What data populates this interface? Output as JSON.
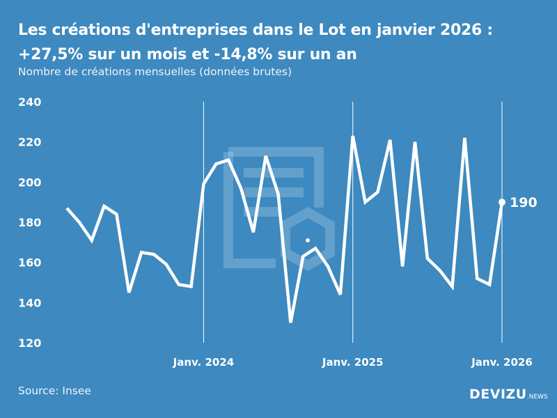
{
  "title_line1": "Les créations d'entreprises dans le Lot en janvier 2026 :",
  "title_line2": "+27,5% sur un mois et -14,8% sur un an",
  "subtitle": "Nombre de créations mensuelles (données brutes)",
  "source": "Source: Insee",
  "logo": {
    "main": "DEVIZU",
    "suffix": ".NEWS"
  },
  "colors": {
    "background": "#3d89c0",
    "line": "#ffffff"
  },
  "chart_data": {
    "type": "line",
    "x": [
      "2023-02",
      "2023-03",
      "2023-04",
      "2023-05",
      "2023-06",
      "2023-07",
      "2023-08",
      "2023-09",
      "2023-10",
      "2023-11",
      "2023-12",
      "2024-01",
      "2024-02",
      "2024-03",
      "2024-04",
      "2024-05",
      "2024-06",
      "2024-07",
      "2024-08",
      "2024-09",
      "2024-10",
      "2024-11",
      "2024-12",
      "2025-01",
      "2025-02",
      "2025-03",
      "2025-04",
      "2025-05",
      "2025-06",
      "2025-07",
      "2025-08",
      "2025-09",
      "2025-10",
      "2025-11",
      "2025-12",
      "2026-01"
    ],
    "values": [
      187,
      180,
      171,
      188,
      184,
      145,
      165,
      164,
      159,
      149,
      148,
      199,
      209,
      211,
      197,
      175,
      213,
      194,
      130,
      163,
      167,
      158,
      144,
      223,
      190,
      195,
      221,
      158,
      220,
      162,
      156,
      148,
      222,
      152,
      149,
      190
    ],
    "ylim": [
      120,
      240
    ],
    "yticks": [
      "120",
      "140",
      "160",
      "180",
      "200",
      "220",
      "240"
    ],
    "xtick_labels": [
      {
        "x": "2024-01",
        "label": "Janv. 2024"
      },
      {
        "x": "2025-01",
        "label": "Janv. 2025"
      },
      {
        "x": "2026-01",
        "label": "Janv. 2026"
      }
    ],
    "last_value_label": "190",
    "grid": false
  }
}
